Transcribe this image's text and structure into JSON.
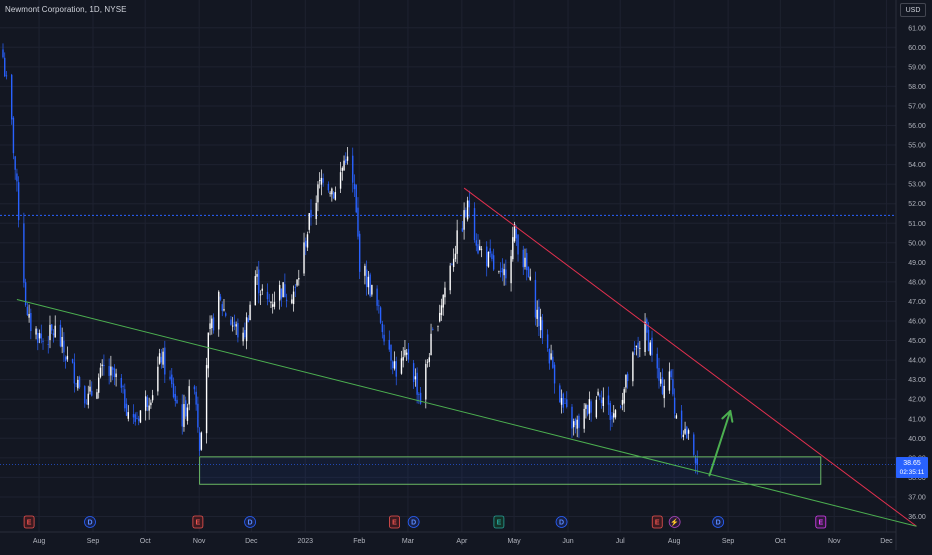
{
  "header": {
    "symbol_title": "Newmont Corporation, 1D, NYSE",
    "currency": "USD"
  },
  "price_label": {
    "price": "38.65",
    "countdown": "02:35:11"
  },
  "colors": {
    "background": "#131722",
    "grid": "#1e2230",
    "axis_text": "#b2b5be",
    "candle_up": "#ffffff",
    "candle_down": "#2962ff",
    "trendline_upper": "#e0304e",
    "trendline_lower": "#4caf50",
    "support_zone_border": "#73c86a",
    "arrow": "#4caf50",
    "dotted_level": "#2962ff"
  },
  "chart_data": {
    "type": "candlestick",
    "title": "Newmont Corporation, 1D, NYSE",
    "currency": "USD",
    "y_axis": {
      "ticks": [
        "36.00",
        "37.00",
        "38.00",
        "39.00",
        "40.00",
        "41.00",
        "42.00",
        "43.00",
        "44.00",
        "45.00",
        "46.00",
        "47.00",
        "48.00",
        "49.00",
        "50.00",
        "51.00",
        "52.00",
        "53.00",
        "54.00",
        "55.00",
        "56.00",
        "57.00",
        "58.00",
        "59.00",
        "60.00",
        "61.00"
      ],
      "range": [
        35.5,
        61.5
      ]
    },
    "x_axis": {
      "ticks": [
        "Aug",
        "Sep",
        "Oct",
        "Nov",
        "Dec",
        "2023",
        "Feb",
        "Mar",
        "Apr",
        "May",
        "Jun",
        "Jul",
        "Aug",
        "Sep",
        "Oct",
        "Nov",
        "Dec"
      ]
    },
    "last_price": 38.65,
    "dotted_level": 51.4,
    "close_path": [
      [
        "2022-07-13",
        59.5
      ],
      [
        "2022-07-18",
        56.0
      ],
      [
        "2022-07-22",
        51.5
      ],
      [
        "2022-07-27",
        46.0
      ],
      [
        "2022-08-05",
        45.0
      ],
      [
        "2022-08-12",
        45.5
      ],
      [
        "2022-08-19",
        44.0
      ],
      [
        "2022-08-31",
        42.0
      ],
      [
        "2022-09-09",
        43.5
      ],
      [
        "2022-09-16",
        43.0
      ],
      [
        "2022-09-26",
        40.8
      ],
      [
        "2022-10-07",
        42.5
      ],
      [
        "2022-10-12",
        44.2
      ],
      [
        "2022-10-17",
        42.8
      ],
      [
        "2022-10-24",
        41.0
      ],
      [
        "2022-10-31",
        43.0
      ],
      [
        "2022-11-03",
        39.8
      ],
      [
        "2022-11-08",
        45.0
      ],
      [
        "2022-11-14",
        47.0
      ],
      [
        "2022-11-21",
        46.0
      ],
      [
        "2022-11-28",
        45.0
      ],
      [
        "2022-12-05",
        48.3
      ],
      [
        "2022-12-12",
        46.8
      ],
      [
        "2022-12-19",
        47.6
      ],
      [
        "2022-12-28",
        47.5
      ],
      [
        "2023-01-06",
        51.5
      ],
      [
        "2023-01-13",
        53.5
      ],
      [
        "2023-01-20",
        52.5
      ],
      [
        "2023-01-26",
        54.5
      ],
      [
        "2023-01-31",
        52.5
      ],
      [
        "2023-02-03",
        49.0
      ],
      [
        "2023-02-10",
        47.5
      ],
      [
        "2023-02-17",
        45.5
      ],
      [
        "2023-02-24",
        43.5
      ],
      [
        "2023-03-03",
        44.2
      ],
      [
        "2023-03-10",
        42.0
      ],
      [
        "2023-03-15",
        44.5
      ],
      [
        "2023-03-22",
        47.0
      ],
      [
        "2023-03-29",
        49.5
      ],
      [
        "2023-04-03",
        51.0
      ],
      [
        "2023-04-07",
        52.0
      ],
      [
        "2023-04-12",
        49.8
      ],
      [
        "2023-04-19",
        49.0
      ],
      [
        "2023-04-26",
        48.0
      ],
      [
        "2023-05-03",
        50.5
      ],
      [
        "2023-05-10",
        48.5
      ],
      [
        "2023-05-17",
        46.0
      ],
      [
        "2023-05-24",
        44.0
      ],
      [
        "2023-05-31",
        41.5
      ],
      [
        "2023-06-07",
        40.5
      ],
      [
        "2023-06-14",
        41.5
      ],
      [
        "2023-06-21",
        42.5
      ],
      [
        "2023-06-28",
        41.0
      ],
      [
        "2023-07-05",
        42.5
      ],
      [
        "2023-07-12",
        44.5
      ],
      [
        "2023-07-17",
        45.5
      ],
      [
        "2023-07-21",
        44.5
      ],
      [
        "2023-07-26",
        42.5
      ],
      [
        "2023-07-31",
        43.5
      ],
      [
        "2023-08-03",
        41.5
      ],
      [
        "2023-08-08",
        40.5
      ],
      [
        "2023-08-14",
        39.5
      ],
      [
        "2023-08-16",
        38.65
      ]
    ],
    "annotations": {
      "upper_trendline": {
        "from": [
          "2023-04-04",
          52.8
        ],
        "to": [
          "2023-12-20",
          35.5
        ]
      },
      "lower_trendline": {
        "from": [
          "2022-07-21",
          47.1
        ],
        "to": [
          "2023-12-20",
          35.5
        ]
      },
      "support_zone": {
        "x_from": "2022-11-03",
        "x_to": "2023-10-26",
        "y_low": 37.65,
        "y_high": 39.05
      },
      "arrow": {
        "from": [
          "2023-08-23",
          38.1
        ],
        "to": [
          "2023-09-04",
          41.4
        ]
      }
    },
    "event_markers": [
      {
        "date": "2022-07-28",
        "kind": "earnings",
        "letter": "E"
      },
      {
        "date": "2022-09-01",
        "kind": "dividend",
        "letter": "D"
      },
      {
        "date": "2022-11-02",
        "kind": "earnings",
        "letter": "E"
      },
      {
        "date": "2022-12-02",
        "kind": "dividend",
        "letter": "D"
      },
      {
        "date": "2023-02-23",
        "kind": "earnings",
        "letter": "E"
      },
      {
        "date": "2023-03-06",
        "kind": "dividend",
        "letter": "D"
      },
      {
        "date": "2023-04-24",
        "kind": "earnings",
        "letter": "E"
      },
      {
        "date": "2023-05-30",
        "kind": "dividend",
        "letter": "D"
      },
      {
        "date": "2023-07-24",
        "kind": "earnings",
        "letter": "E"
      },
      {
        "date": "2023-08-03",
        "kind": "split",
        "letter": "⚡"
      },
      {
        "date": "2023-08-28",
        "kind": "dividend",
        "letter": "D"
      },
      {
        "date": "2023-10-26",
        "kind": "earnings_future",
        "letter": "E"
      }
    ]
  }
}
